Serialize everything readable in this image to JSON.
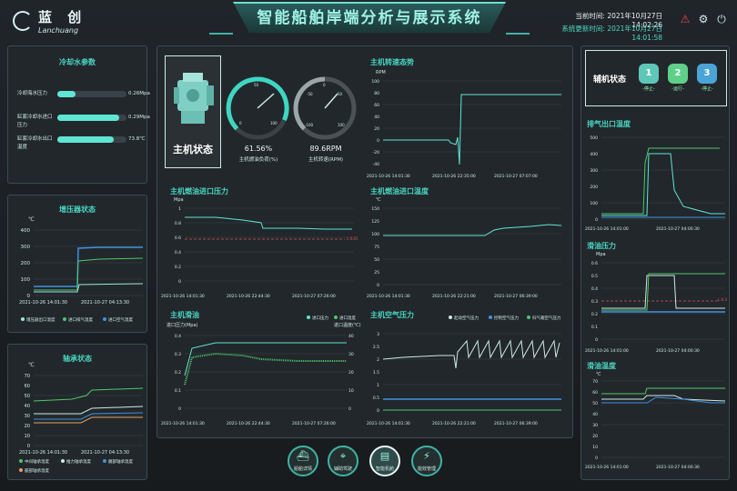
{
  "header": {
    "logo_cn": "蓝 创",
    "logo_en": "Lanchuang",
    "title": "智能船舶岸端分析与展示系统",
    "current_time": "当前时间: 2021年10月27日 14:02:26",
    "update_time": "系统更新时间: 2021年10月27日 14:01:58",
    "icons": [
      "alarm-icon",
      "gear-icon",
      "power-icon"
    ]
  },
  "cooling": {
    "title": "冷却水参数",
    "rows": [
      {
        "label": "冷却海水压力",
        "value": "0.26Mpa",
        "fill": 0.26
      },
      {
        "label": "缸套冷却水进口压力",
        "value": "0.29Mpa",
        "fill": 0.29
      },
      {
        "label": "缸套冷却水出口温度",
        "value": "73.8℃",
        "fill": 0.73
      }
    ]
  },
  "turbo": {
    "title": "增压器状态",
    "unit": "℃",
    "y_ticks": [
      "400",
      "300",
      "200",
      "100",
      "0"
    ],
    "x_ticks": [
      "2021-10-26 14:01:30",
      "2021-10-27 04:13:30"
    ],
    "legend": [
      "增压器出口温度",
      "进口排气温度",
      "进口空气温度"
    ]
  },
  "bearing": {
    "title": "轴承状态",
    "unit": "℃",
    "y_ticks": [
      "70",
      "60",
      "50",
      "40",
      "30",
      "20",
      "10",
      "0"
    ],
    "x_ticks": [
      "2021-10-26 14:01:30",
      "2021-10-27 04:13:30"
    ],
    "legend": [
      "中间轴承温度",
      "推力轴承温度",
      "艉部轴承温度",
      "艏部轴承温度"
    ]
  },
  "engine_state": {
    "title": "主机状态",
    "load_value": "61.56%",
    "load_label": "主机燃油负荷(%)",
    "speed_value": "89.6RPM",
    "speed_label": "主机转速(RPM)",
    "gauge1_ticks": [
      "0",
      "50",
      "100"
    ],
    "gauge2_ticks": [
      "-100",
      "-50",
      "0",
      "50",
      "100"
    ]
  },
  "speed_trend": {
    "title": "主机转速态势",
    "unit": "RPM",
    "y_ticks": [
      "100",
      "80",
      "60",
      "40",
      "20",
      "0",
      "-20",
      "-40"
    ],
    "x_ticks": [
      "2021-10-26 14:01:30",
      "2021-10-26 22:35:00",
      "2021-10-27 07:07:00"
    ]
  },
  "fuel_pressure": {
    "title": "主机燃油进口压力",
    "unit": "Mpa",
    "y_ticks": [
      "1",
      "0.8",
      "0.6",
      "0.4",
      "0.2",
      "0"
    ],
    "x_ticks": [
      "2021-10-26 14:01:30",
      "2021-10-26 22:44:30",
      "2021-10-27 07:26:00"
    ],
    "limit_label": "L:0.65"
  },
  "fuel_temp": {
    "title": "主机燃油进口温度",
    "unit": "℃",
    "y_ticks": [
      "150",
      "125",
      "100",
      "75",
      "50",
      "25",
      "0"
    ],
    "x_ticks": [
      "2021-10-26 14:01:30",
      "2021-10-26 22:21:00",
      "2021-10-27 06:39:00"
    ]
  },
  "lube": {
    "title": "主机滑油",
    "left_unit": "进口压力(Mpa)",
    "right_unit": "进口温度(℃)",
    "legend": [
      "进口压力",
      "进口温度"
    ],
    "y_left": [
      "0.4",
      "0.3",
      "0.2",
      "0.1",
      "0"
    ],
    "y_right": [
      "40",
      "30",
      "20",
      "10",
      "0"
    ],
    "x_ticks": [
      "2021-10-26 14:01:30",
      "2021-10-26 22:44:30",
      "2021-10-27 07:26:00"
    ]
  },
  "start_air": {
    "title": "主机空气压力",
    "legend": [
      "起动空气压力",
      "控制空气压力",
      "扫气箱空气压力"
    ],
    "y_ticks": [
      "3",
      "2.5",
      "2",
      "1.5",
      "1",
      "0.5",
      "0"
    ],
    "x_ticks": [
      "2021-10-26 14:01:30",
      "2021-10-26 22:21:00",
      "2021-10-27 06:39:00"
    ]
  },
  "aux": {
    "title": "辅机状态",
    "units": [
      {
        "num": "1",
        "status": "-停止-",
        "color": "#5fc7b8"
      },
      {
        "num": "2",
        "status": "-运行-",
        "color": "#5fd08a"
      },
      {
        "num": "3",
        "status": "-停止-",
        "color": "#4aa4d8"
      }
    ]
  },
  "exhaust": {
    "title": "排气出口温度",
    "y_ticks": [
      "500",
      "400",
      "300",
      "200",
      "100",
      "0"
    ],
    "x_ticks": [
      "2021-10-26 14:01:00",
      "2021-10-27 04:00:30"
    ]
  },
  "lube_pressure": {
    "title": "滑油压力",
    "unit": "Mpa",
    "y_ticks": [
      "0.6",
      "0.5",
      "0.4",
      "0.3",
      "0.2",
      "0.1",
      "0"
    ],
    "x_ticks": [
      "2021-10-26 14:01:00",
      "2021-10-27 04:00:30"
    ],
    "limit_label": "L:0.3"
  },
  "lube_temp": {
    "title": "滑油温度",
    "unit": "℃",
    "y_ticks": [
      "70",
      "60",
      "50",
      "40",
      "30",
      "20",
      "10",
      "0"
    ],
    "x_ticks": [
      "2021-10-26 14:01:00",
      "2021-10-27 04:00:30"
    ]
  },
  "nav": [
    {
      "label": "船舶详情",
      "icon": "ship-icon"
    },
    {
      "label": "辅助驾驶",
      "icon": "location-icon"
    },
    {
      "label": "智能机舱",
      "icon": "engine-icon",
      "active": true
    },
    {
      "label": "能效管理",
      "icon": "energy-icon"
    }
  ]
}
